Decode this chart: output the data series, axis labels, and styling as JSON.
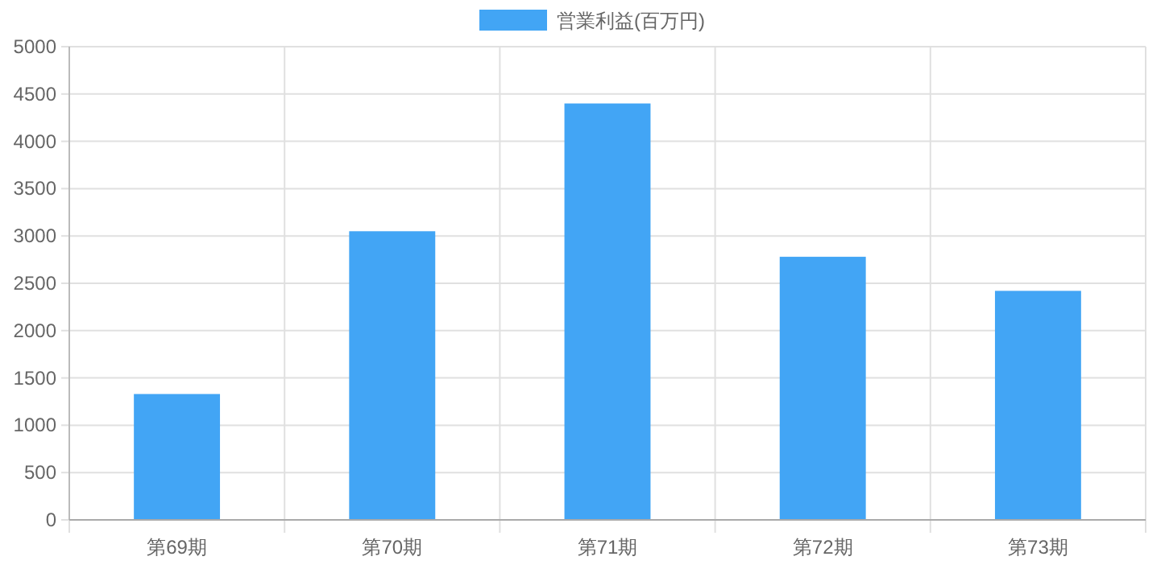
{
  "chart_data": {
    "type": "bar",
    "categories": [
      "第69期",
      "第70期",
      "第71期",
      "第72期",
      "第73期"
    ],
    "series": [
      {
        "name": "営業利益(百万円)",
        "color": "#42a5f5",
        "values": [
          1330,
          3050,
          4400,
          2780,
          2420
        ]
      }
    ],
    "ylim": [
      0,
      5000
    ],
    "yticks": [
      0,
      500,
      1000,
      1500,
      2000,
      2500,
      3000,
      3500,
      4000,
      4500,
      5000
    ],
    "grid": true,
    "legend": "top"
  }
}
